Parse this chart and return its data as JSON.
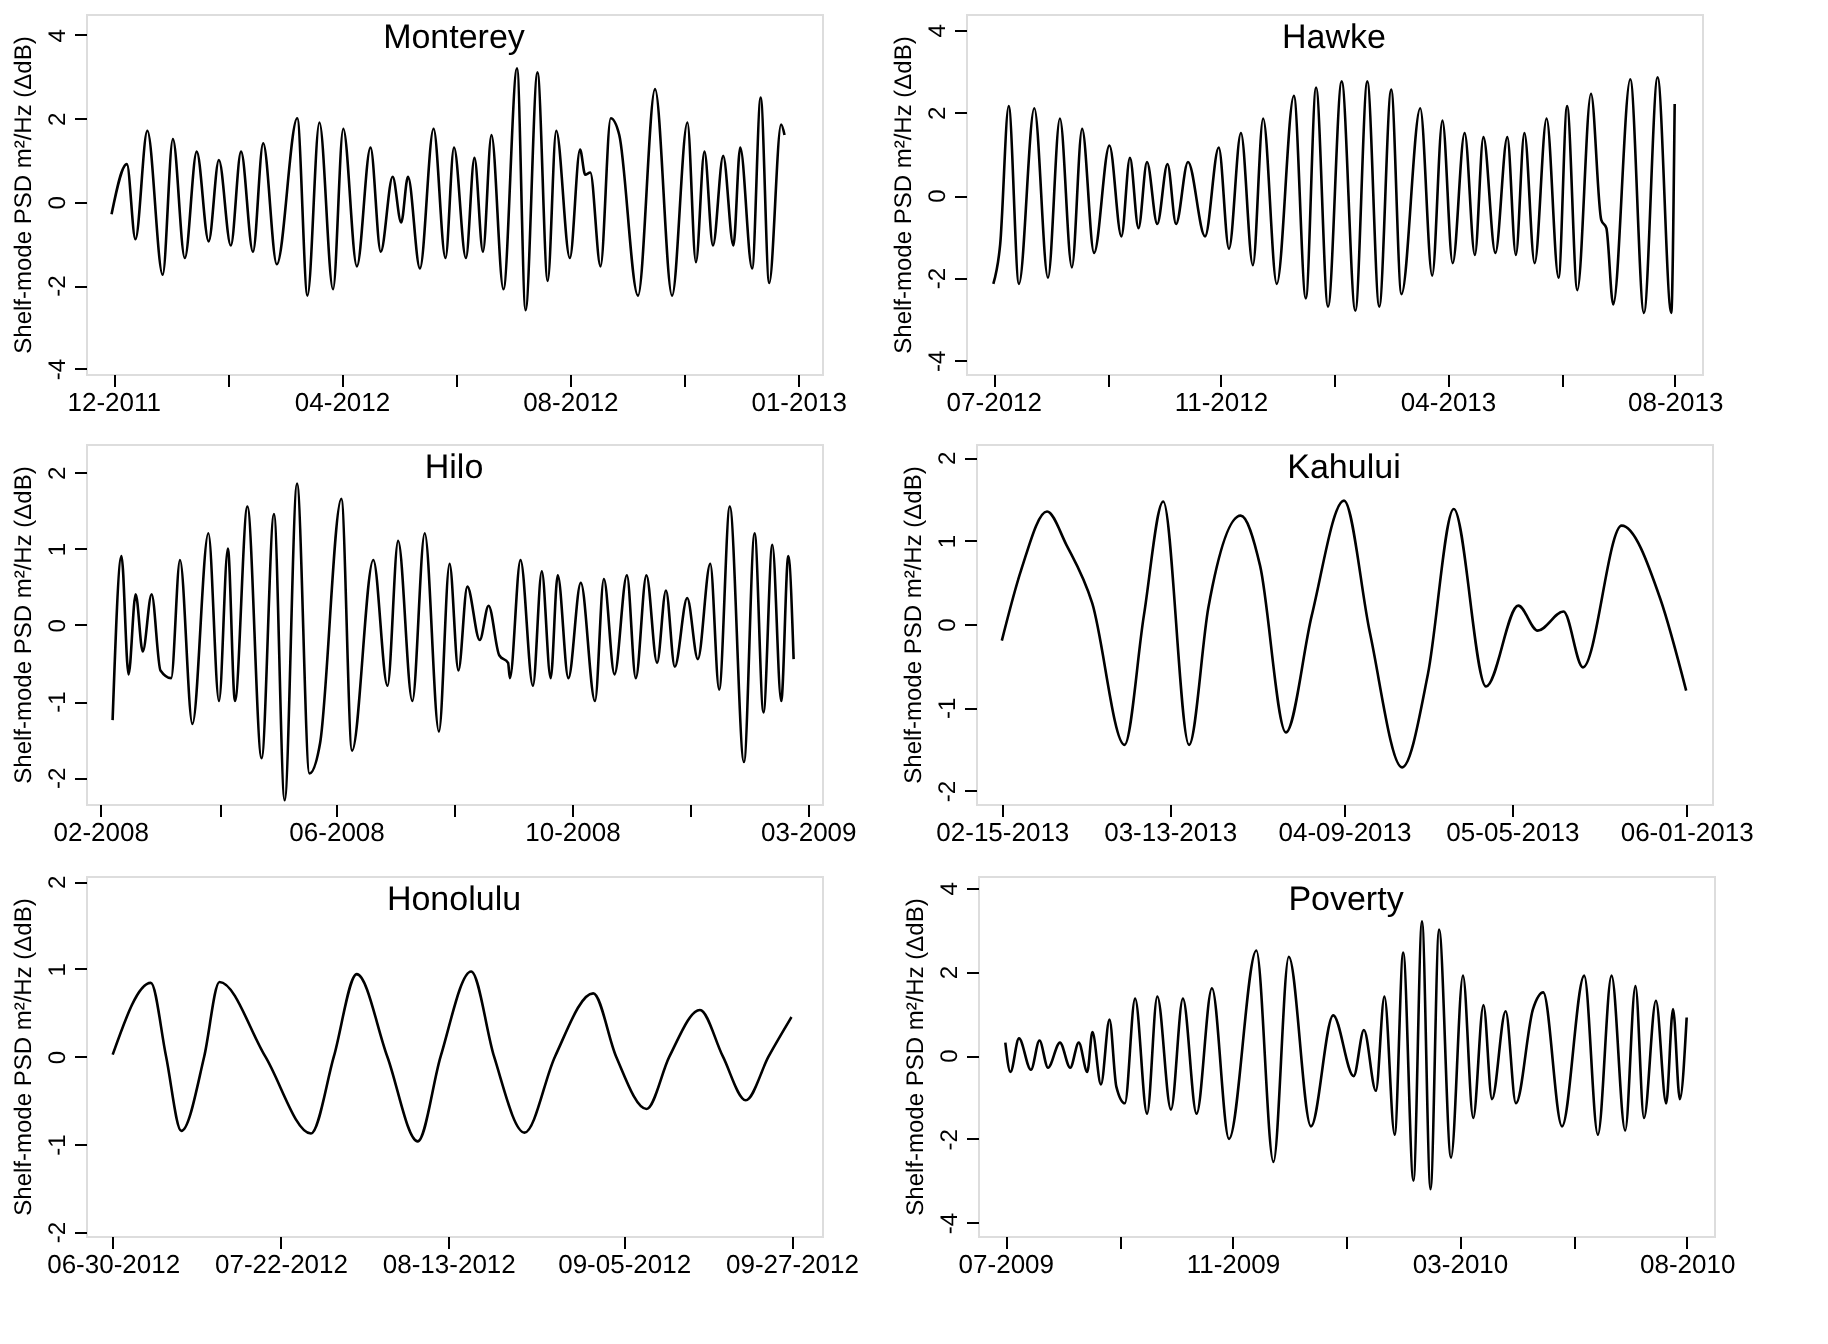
{
  "chart_data": [
    {
      "type": "line",
      "title": "Monterey",
      "ylabel": "Shelf-mode PSD m²/Hz (ΔdB)",
      "xlim": [
        "2011-11-15",
        "2013-01-20"
      ],
      "ylim": [
        -4.13,
        4.5
      ],
      "yticks": [
        -4,
        -2,
        0,
        2,
        4
      ],
      "xticks": [
        {
          "value": "2011-12-01",
          "label": "12-2011"
        },
        {
          "value": "2012-02-06",
          "label": null
        },
        {
          "value": "2012-04-13",
          "label": "04-2012"
        },
        {
          "value": "2012-06-19",
          "label": null
        },
        {
          "value": "2012-08-25",
          "label": "08-2012"
        },
        {
          "value": "2012-10-31",
          "label": null
        },
        {
          "value": "2013-01-06",
          "label": "01-2013"
        }
      ],
      "x": [
        "2011-11-30",
        "2011-12-09",
        "2011-12-14",
        "2011-12-21",
        "2011-12-30",
        "2012-01-05",
        "2012-01-12",
        "2012-01-19",
        "2012-01-26",
        "2012-02-01",
        "2012-02-08",
        "2012-02-14",
        "2012-02-21",
        "2012-02-27",
        "2012-03-06",
        "2012-03-18",
        "2012-03-24",
        "2012-03-31",
        "2012-04-08",
        "2012-04-14",
        "2012-04-22",
        "2012-04-30",
        "2012-05-06",
        "2012-05-13",
        "2012-05-18",
        "2012-05-22",
        "2012-05-29",
        "2012-06-06",
        "2012-06-13",
        "2012-06-18",
        "2012-06-25",
        "2012-06-30",
        "2012-07-05",
        "2012-07-10",
        "2012-07-17",
        "2012-07-25",
        "2012-07-30",
        "2012-08-06",
        "2012-08-12",
        "2012-08-17",
        "2012-08-25",
        "2012-08-31",
        "2012-09-03",
        "2012-09-06",
        "2012-09-12",
        "2012-09-18",
        "2012-09-23",
        "2012-10-04",
        "2012-10-14",
        "2012-10-24",
        "2012-11-02",
        "2012-11-07",
        "2012-11-12",
        "2012-11-17",
        "2012-11-23",
        "2012-11-29",
        "2012-12-03",
        "2012-12-10",
        "2012-12-15",
        "2012-12-20",
        "2012-12-27",
        "2012-12-29"
      ],
      "series": [
        {
          "color": "#000000",
          "values": [
            -0.3,
            0.9,
            -0.9,
            1.7,
            -1.75,
            1.5,
            -1.35,
            1.2,
            -0.95,
            1.0,
            -1.05,
            1.2,
            -1.2,
            1.4,
            -1.5,
            2.0,
            -2.25,
            1.9,
            -2.1,
            1.75,
            -1.55,
            1.3,
            -1.2,
            0.6,
            -0.5,
            0.6,
            -1.6,
            1.75,
            -1.35,
            1.3,
            -1.35,
            1.05,
            -1.2,
            1.6,
            -2.1,
            3.2,
            -2.6,
            3.1,
            -1.9,
            1.7,
            -1.35,
            1.25,
            0.65,
            0.7,
            -1.55,
            2.0,
            1.6,
            -2.25,
            2.7,
            -2.25,
            1.9,
            -1.45,
            1.2,
            -1.05,
            1.1,
            -1.05,
            1.3,
            -1.6,
            2.5,
            -1.95,
            1.85,
            1.6
          ]
        }
      ]
    },
    {
      "type": "line",
      "title": "Hawke",
      "ylabel": "Shelf-mode PSD m²/Hz (ΔdB)",
      "xlim": [
        "2012-06-29",
        "2013-09-03"
      ],
      "ylim": [
        -4.33,
        4.38
      ],
      "yticks": [
        -4,
        -2,
        0,
        2,
        4
      ],
      "xticks": [
        {
          "value": "2012-07-15",
          "label": "07-2012"
        },
        {
          "value": "2012-09-20",
          "label": null
        },
        {
          "value": "2012-11-25",
          "label": "11-2012"
        },
        {
          "value": "2013-01-31",
          "label": null
        },
        {
          "value": "2013-04-07",
          "label": "04-2013"
        },
        {
          "value": "2013-06-13",
          "label": null
        },
        {
          "value": "2013-08-18",
          "label": "08-2013"
        }
      ],
      "x": [
        "2012-07-15",
        "2012-07-19",
        "2012-07-24",
        "2012-07-30",
        "2012-08-08",
        "2012-08-16",
        "2012-08-23",
        "2012-08-30",
        "2012-09-05",
        "2012-09-12",
        "2012-09-21",
        "2012-09-28",
        "2012-10-03",
        "2012-10-08",
        "2012-10-13",
        "2012-10-19",
        "2012-10-25",
        "2012-10-30",
        "2012-11-06",
        "2012-11-16",
        "2012-11-24",
        "2012-11-30",
        "2012-12-07",
        "2012-12-14",
        "2012-12-20",
        "2012-12-28",
        "2013-01-07",
        "2013-01-14",
        "2013-01-20",
        "2013-01-27",
        "2013-02-04",
        "2013-02-12",
        "2013-02-19",
        "2013-02-26",
        "2013-03-05",
        "2013-03-11",
        "2013-03-22",
        "2013-03-29",
        "2013-04-04",
        "2013-04-10",
        "2013-04-17",
        "2013-04-23",
        "2013-04-28",
        "2013-05-05",
        "2013-05-12",
        "2013-05-17",
        "2013-05-22",
        "2013-05-28",
        "2013-06-04",
        "2013-06-11",
        "2013-06-16",
        "2013-06-22",
        "2013-06-30",
        "2013-07-06",
        "2013-07-09",
        "2013-07-13",
        "2013-07-23",
        "2013-07-31",
        "2013-08-08",
        "2013-08-16",
        "2013-08-18"
      ],
      "series": [
        {
          "color": "#000000",
          "values": [
            -2.15,
            -1.2,
            2.15,
            -2.15,
            2.1,
            -2.0,
            1.85,
            -1.75,
            1.6,
            -1.4,
            1.2,
            -1.0,
            0.9,
            -0.8,
            0.8,
            -0.7,
            0.75,
            -0.7,
            0.8,
            -1.0,
            1.15,
            -1.3,
            1.5,
            -1.7,
            1.85,
            -2.15,
            2.4,
            -2.5,
            2.6,
            -2.7,
            2.75,
            -2.8,
            2.75,
            -2.7,
            2.55,
            -2.4,
            2.1,
            -1.95,
            1.8,
            -1.65,
            1.5,
            -1.45,
            1.4,
            -1.4,
            1.4,
            -1.45,
            1.5,
            -1.65,
            1.85,
            -2.0,
            2.15,
            -2.3,
            2.45,
            -0.6,
            -0.8,
            -2.65,
            2.8,
            -2.85,
            2.85,
            -2.85,
            2.2
          ]
        }
      ]
    },
    {
      "type": "line",
      "title": "Hilo",
      "ylabel": "Shelf-mode PSD m²/Hz (ΔdB)",
      "xlim": [
        "2008-01-28",
        "2009-03-18"
      ],
      "ylim": [
        -2.35,
        2.37
      ],
      "yticks": [
        -2,
        -1,
        0,
        1,
        2
      ],
      "xticks": [
        {
          "value": "2008-02-05",
          "label": "02-2008"
        },
        {
          "value": "2008-04-12",
          "label": null
        },
        {
          "value": "2008-06-17",
          "label": "06-2008"
        },
        {
          "value": "2008-08-23",
          "label": null
        },
        {
          "value": "2008-10-28",
          "label": "10-2008"
        },
        {
          "value": "2009-01-03",
          "label": null
        },
        {
          "value": "2009-03-10",
          "label": "03-2009"
        }
      ],
      "x": [
        "2008-02-12",
        "2008-02-17",
        "2008-02-21",
        "2008-02-25",
        "2008-02-29",
        "2008-03-05",
        "2008-03-10",
        "2008-03-16",
        "2008-03-21",
        "2008-03-28",
        "2008-04-06",
        "2008-04-12",
        "2008-04-17",
        "2008-04-21",
        "2008-04-28",
        "2008-05-06",
        "2008-05-13",
        "2008-05-19",
        "2008-05-26",
        "2008-06-02",
        "2008-06-08",
        "2008-06-20",
        "2008-06-26",
        "2008-07-08",
        "2008-07-16",
        "2008-07-22",
        "2008-07-30",
        "2008-08-06",
        "2008-08-14",
        "2008-08-20",
        "2008-08-25",
        "2008-08-30",
        "2008-09-06",
        "2008-09-11",
        "2008-09-17",
        "2008-09-22",
        "2008-09-23",
        "2008-09-29",
        "2008-10-06",
        "2008-10-11",
        "2008-10-16",
        "2008-10-20",
        "2008-10-26",
        "2008-11-02",
        "2008-11-10",
        "2008-11-15",
        "2008-11-21",
        "2008-11-28",
        "2008-12-03",
        "2008-12-09",
        "2008-12-15",
        "2008-12-20",
        "2008-12-25",
        "2009-01-01",
        "2009-01-07",
        "2009-01-14",
        "2009-01-19",
        "2009-01-25",
        "2009-02-02",
        "2009-02-08",
        "2009-02-13",
        "2009-02-18",
        "2009-02-23",
        "2009-02-27",
        "2009-03-02"
      ],
      "series": [
        {
          "color": "#000000",
          "values": [
            -1.25,
            0.9,
            -0.65,
            0.4,
            -0.35,
            0.4,
            -0.6,
            -0.7,
            0.85,
            -1.3,
            1.2,
            -1.0,
            1.0,
            -1.0,
            1.55,
            -1.75,
            1.45,
            -2.3,
            1.85,
            -1.95,
            -1.55,
            1.65,
            -1.65,
            0.85,
            -0.8,
            1.1,
            -1.0,
            1.2,
            -1.4,
            0.8,
            -0.6,
            0.5,
            -0.2,
            0.25,
            -0.4,
            -0.5,
            -0.7,
            0.85,
            -0.8,
            0.7,
            -0.7,
            0.65,
            -0.7,
            0.55,
            -1.0,
            0.6,
            -0.65,
            0.65,
            -0.7,
            0.65,
            -0.5,
            0.45,
            -0.55,
            0.35,
            -0.45,
            0.8,
            -0.85,
            1.55,
            -1.8,
            1.2,
            -1.15,
            1.05,
            -1.0,
            0.9,
            -0.45
          ]
        }
      ]
    },
    {
      "type": "line",
      "title": "Kahului",
      "ylabel": "Shelf-mode PSD m²/Hz (ΔdB)",
      "xlim": [
        "2013-02-11",
        "2013-06-05"
      ],
      "ylim": [
        -2.16,
        2.16
      ],
      "yticks": [
        -2,
        -1,
        0,
        1,
        2
      ],
      "xticks": [
        {
          "value": "2013-02-15",
          "label": "02-15-2013"
        },
        {
          "value": "2013-03-13",
          "label": "03-13-2013"
        },
        {
          "value": "2013-04-09",
          "label": "04-09-2013"
        },
        {
          "value": "2013-05-05",
          "label": "05-05-2013"
        },
        {
          "value": "2013-06-01",
          "label": "06-01-2013"
        }
      ],
      "x": [
        "2013-02-15",
        "2013-02-18",
        "2013-02-22",
        "2013-02-25",
        "2013-03-01",
        "2013-03-06",
        "2013-03-09",
        "2013-03-12",
        "2013-03-16",
        "2013-03-19",
        "2013-03-24",
        "2013-03-27",
        "2013-03-31",
        "2013-04-04",
        "2013-04-09",
        "2013-04-13",
        "2013-04-18",
        "2013-04-22",
        "2013-04-26",
        "2013-05-01",
        "2013-05-06",
        "2013-05-09",
        "2013-05-13",
        "2013-05-16",
        "2013-05-22",
        "2013-05-28",
        "2013-06-01"
      ],
      "series": [
        {
          "color": "#000000",
          "values": [
            -0.2,
            0.65,
            1.35,
            0.95,
            0.25,
            -1.45,
            0.1,
            1.47,
            -1.45,
            0.2,
            1.3,
            0.7,
            -1.3,
            0.1,
            1.48,
            -0.1,
            -1.72,
            -0.6,
            1.38,
            -0.75,
            0.22,
            -0.08,
            0.15,
            -0.52,
            1.18,
            0.3,
            -0.8
          ]
        }
      ]
    },
    {
      "type": "line",
      "title": "Honolulu",
      "ylabel": "Shelf-mode PSD m²/Hz (ΔdB)",
      "xlim": [
        "2012-06-26T12:00",
        "2012-10-01"
      ],
      "ylim": [
        -2.05,
        2.06
      ],
      "yticks": [
        -2,
        -1,
        0,
        1,
        2
      ],
      "xticks": [
        {
          "value": "2012-06-30",
          "label": "06-30-2012"
        },
        {
          "value": "2012-07-22",
          "label": "07-22-2012"
        },
        {
          "value": "2012-08-13",
          "label": "08-13-2012"
        },
        {
          "value": "2012-09-05",
          "label": "09-05-2012"
        },
        {
          "value": "2012-09-27",
          "label": "09-27-2012"
        }
      ],
      "x": [
        "2012-06-30",
        "2012-07-05",
        "2012-07-07",
        "2012-07-09",
        "2012-07-12",
        "2012-07-14",
        "2012-07-20",
        "2012-07-26",
        "2012-07-29",
        "2012-08-01",
        "2012-08-05",
        "2012-08-09",
        "2012-08-12",
        "2012-08-16",
        "2012-08-19",
        "2012-08-23",
        "2012-08-27",
        "2012-09-01",
        "2012-09-04",
        "2012-09-08",
        "2012-09-11",
        "2012-09-15",
        "2012-09-18",
        "2012-09-21",
        "2012-09-24",
        "2012-09-27"
      ],
      "series": [
        {
          "color": "#000000",
          "values": [
            0.02,
            0.84,
            0,
            -0.85,
            0,
            0.85,
            0,
            -0.88,
            0,
            0.94,
            0,
            -0.97,
            0,
            0.97,
            0,
            -0.87,
            0,
            0.72,
            0,
            -0.6,
            0,
            0.53,
            0,
            -0.5,
            0,
            0.45
          ]
        }
      ]
    },
    {
      "type": "line",
      "title": "Poverty",
      "ylabel": "Shelf-mode PSD m²/Hz (ΔdB)",
      "xlim": [
        "2009-06-15",
        "2010-08-20"
      ],
      "ylim": [
        -4.32,
        4.28
      ],
      "yticks": [
        -4,
        -2,
        0,
        2,
        4
      ],
      "xticks": [
        {
          "value": "2009-07-01",
          "label": "07-2009"
        },
        {
          "value": "2009-09-06",
          "label": null
        },
        {
          "value": "2009-11-11",
          "label": "11-2009"
        },
        {
          "value": "2010-01-17",
          "label": null
        },
        {
          "value": "2010-03-24",
          "label": "03-2010"
        },
        {
          "value": "2010-05-30",
          "label": null
        },
        {
          "value": "2010-08-04",
          "label": "08-2010"
        }
      ],
      "x": [
        "2009-07-01",
        "2009-07-04",
        "2009-07-09",
        "2009-07-16",
        "2009-07-21",
        "2009-07-26",
        "2009-08-02",
        "2009-08-08",
        "2009-08-13",
        "2009-08-18",
        "2009-08-21",
        "2009-08-26",
        "2009-08-31",
        "2009-09-04",
        "2009-09-09",
        "2009-09-15",
        "2009-09-22",
        "2009-09-28",
        "2009-10-06",
        "2009-10-13",
        "2009-10-21",
        "2009-10-30",
        "2009-11-09",
        "2009-11-25",
        "2009-12-05",
        "2009-12-14",
        "2009-12-27",
        "2010-01-09",
        "2010-01-21",
        "2010-01-27",
        "2010-02-03",
        "2010-02-08",
        "2010-02-14",
        "2010-02-19",
        "2010-02-25",
        "2010-03-02",
        "2010-03-07",
        "2010-03-12",
        "2010-03-19",
        "2010-03-26",
        "2010-04-01",
        "2010-04-07",
        "2010-04-12",
        "2010-04-20",
        "2010-04-26",
        "2010-05-06",
        "2010-05-12",
        "2010-05-23",
        "2010-06-05",
        "2010-06-13",
        "2010-06-21",
        "2010-06-29",
        "2010-07-05",
        "2010-07-10",
        "2010-07-17",
        "2010-07-23",
        "2010-07-27",
        "2010-07-31",
        "2010-08-04"
      ],
      "series": [
        {
          "color": "#000000",
          "values": [
            0.3,
            -0.4,
            0.4,
            -0.35,
            0.35,
            -0.3,
            0.3,
            -0.3,
            0.3,
            -0.4,
            0.55,
            -0.7,
            0.85,
            -0.75,
            -1.15,
            1.35,
            -1.4,
            1.4,
            -1.3,
            1.35,
            -1.4,
            1.6,
            -2.0,
            2.5,
            -2.55,
            2.35,
            -1.7,
            0.95,
            -0.5,
            0.6,
            -0.85,
            1.4,
            -1.9,
            2.45,
            -3.0,
            3.2,
            -3.2,
            3.0,
            -2.45,
            1.9,
            -1.5,
            1.2,
            -1.05,
            1.05,
            -1.15,
            1.1,
            1.5,
            -1.7,
            1.9,
            -1.9,
            1.9,
            -1.8,
            1.65,
            -1.5,
            1.3,
            -1.15,
            1.1,
            -1.05,
            0.9
          ]
        }
      ]
    }
  ]
}
